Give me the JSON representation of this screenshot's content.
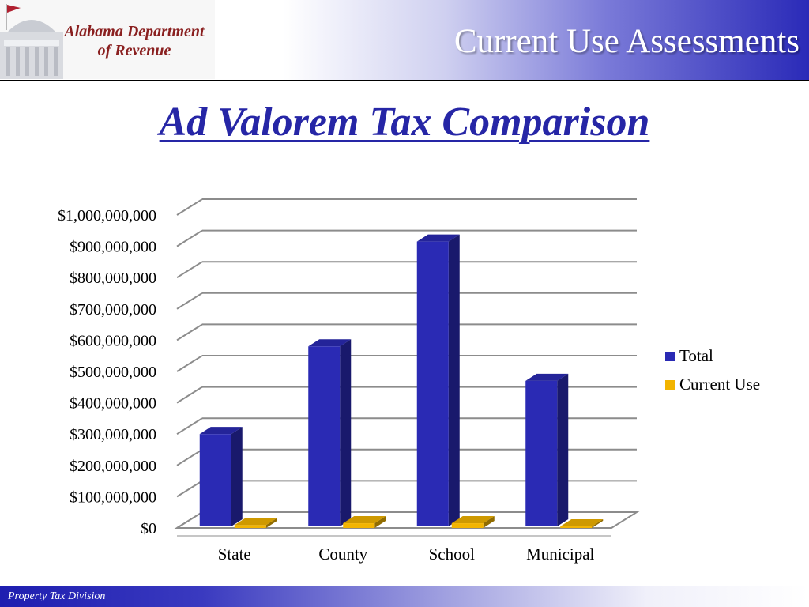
{
  "header": {
    "logo_line1": "Alabama Department",
    "logo_line2": "of Revenue",
    "title": "Current Use Assessments"
  },
  "slide": {
    "title": "Ad Valorem Tax Comparison"
  },
  "footer": {
    "text": "Property Tax Division"
  },
  "colors": {
    "total": "#2a2ab4",
    "current_use": "#f2b400",
    "title_blue": "#2626a6"
  },
  "chart_data": {
    "type": "bar",
    "categories": [
      "State",
      "County",
      "School",
      "Municipal"
    ],
    "series": [
      {
        "name": "Total",
        "values": [
          295000000,
          575000000,
          910000000,
          465000000
        ]
      },
      {
        "name": "Current Use",
        "values": [
          9000000,
          15000000,
          15000000,
          5000000
        ]
      }
    ],
    "y_ticks": [
      "$0",
      "$100,000,000",
      "$200,000,000",
      "$300,000,000",
      "$400,000,000",
      "$500,000,000",
      "$600,000,000",
      "$700,000,000",
      "$800,000,000",
      "$900,000,000",
      "$1,000,000,000"
    ],
    "ylim": [
      0,
      1000000000
    ],
    "legend_position": "right",
    "grid": true
  }
}
